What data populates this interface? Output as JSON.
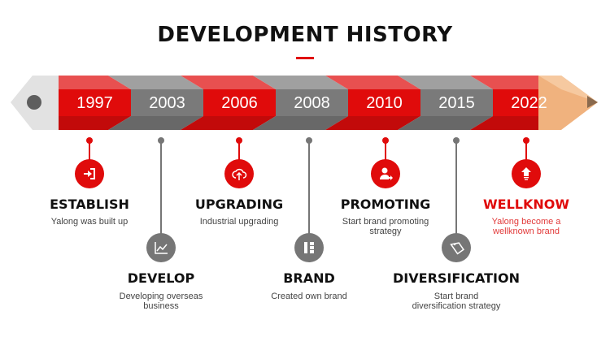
{
  "header": {
    "title": "DEVELOPMENT HISTORY",
    "accent_color": "#e00b0b"
  },
  "timeline": {
    "years": [
      "1997",
      "2003",
      "2006",
      "2008",
      "2010",
      "2015",
      "2022"
    ],
    "items": [
      {
        "year": "1997",
        "title": "ESTABLISH",
        "desc": "Yalong was built up",
        "icon": "sign-in-icon",
        "color": "red"
      },
      {
        "year": "2003",
        "title": "DEVELOP",
        "desc": "Developing overseas business",
        "icon": "line-chart-icon",
        "color": "gray"
      },
      {
        "year": "2006",
        "title": "UPGRADING",
        "desc": "Industrial upgrading",
        "icon": "cloud-upload-icon",
        "color": "red"
      },
      {
        "year": "2008",
        "title": "BRAND",
        "desc": "Created own brand",
        "icon": "hierarchy-icon",
        "color": "gray"
      },
      {
        "year": "2010",
        "title": "PROMOTING",
        "desc": "Start brand promoting strategy",
        "icon": "user-share-icon",
        "color": "red"
      },
      {
        "year": "2015",
        "title": "DIVERSIFICATION",
        "desc": "Start brand diversification strategy",
        "icon": "tag-icon",
        "color": "gray"
      },
      {
        "year": "2022",
        "title": "WELLKNOW",
        "desc": "Yalong become a wellknown brand",
        "icon": "arrow-up-icon",
        "color": "red"
      }
    ]
  },
  "colors": {
    "red": "#e00b0b",
    "red_light": "#e85050",
    "red_dark": "#c20a0a",
    "gray": "#7a7a7a",
    "gray_light": "#a0a0a0",
    "gray_dark": "#686868",
    "wood": "#f0b27e"
  }
}
